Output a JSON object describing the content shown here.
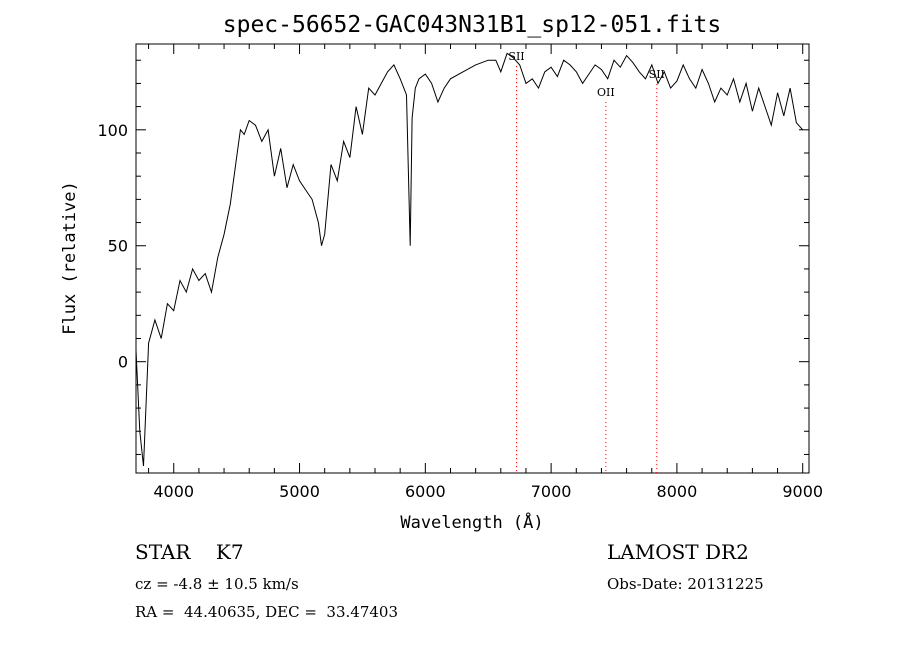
{
  "chart_data": {
    "type": "line",
    "title": "spec-56652-GAC043N31B1_sp12-051.fits",
    "xlabel": "Wavelength (Å)",
    "ylabel": "Flux (relative)",
    "xlim": [
      3700,
      9050
    ],
    "ylim": [
      -48,
      137
    ],
    "xticks": [
      4000,
      5000,
      6000,
      7000,
      8000,
      9000
    ],
    "yticks": [
      0,
      50,
      100
    ],
    "grid": false,
    "line_color": "#000000",
    "line_markers_color": "#ff0000",
    "lines": [
      {
        "label": "SII",
        "x": 6725
      },
      {
        "label": "OII",
        "x": 7435
      },
      {
        "label": "SII",
        "x": 7840
      }
    ],
    "x": [
      3700,
      3730,
      3760,
      3800,
      3850,
      3900,
      3950,
      4000,
      4050,
      4100,
      4150,
      4200,
      4250,
      4300,
      4350,
      4400,
      4450,
      4500,
      4530,
      4560,
      4600,
      4650,
      4700,
      4750,
      4800,
      4850,
      4900,
      4950,
      5000,
      5050,
      5100,
      5150,
      5175,
      5200,
      5250,
      5300,
      5350,
      5400,
      5450,
      5500,
      5550,
      5600,
      5650,
      5700,
      5750,
      5800,
      5850,
      5880,
      5895,
      5920,
      5950,
      6000,
      6050,
      6100,
      6150,
      6200,
      6300,
      6400,
      6500,
      6560,
      6600,
      6650,
      6700,
      6750,
      6800,
      6850,
      6900,
      6950,
      7000,
      7050,
      7100,
      7150,
      7200,
      7250,
      7300,
      7350,
      7400,
      7450,
      7500,
      7550,
      7600,
      7650,
      7700,
      7750,
      7800,
      7850,
      7900,
      7950,
      8000,
      8050,
      8100,
      8150,
      8200,
      8250,
      8300,
      8350,
      8400,
      8450,
      8500,
      8550,
      8600,
      8650,
      8700,
      8750,
      8800,
      8850,
      8900,
      8950,
      9000
    ],
    "y": [
      5,
      -30,
      -45,
      8,
      18,
      10,
      25,
      22,
      35,
      30,
      40,
      35,
      38,
      30,
      45,
      55,
      68,
      88,
      100,
      98,
      104,
      102,
      95,
      100,
      80,
      92,
      75,
      85,
      78,
      74,
      70,
      60,
      50,
      55,
      85,
      78,
      95,
      88,
      110,
      98,
      118,
      115,
      120,
      125,
      128,
      122,
      115,
      50,
      105,
      118,
      122,
      124,
      120,
      112,
      118,
      122,
      125,
      128,
      130,
      130,
      125,
      133,
      131,
      128,
      120,
      122,
      118,
      125,
      127,
      123,
      130,
      128,
      125,
      120,
      124,
      128,
      126,
      122,
      130,
      127,
      132,
      129,
      125,
      122,
      128,
      120,
      125,
      118,
      121,
      128,
      122,
      118,
      126,
      120,
      112,
      118,
      115,
      122,
      112,
      120,
      108,
      118,
      110,
      102,
      116,
      106,
      118,
      103,
      100
    ]
  }
}
